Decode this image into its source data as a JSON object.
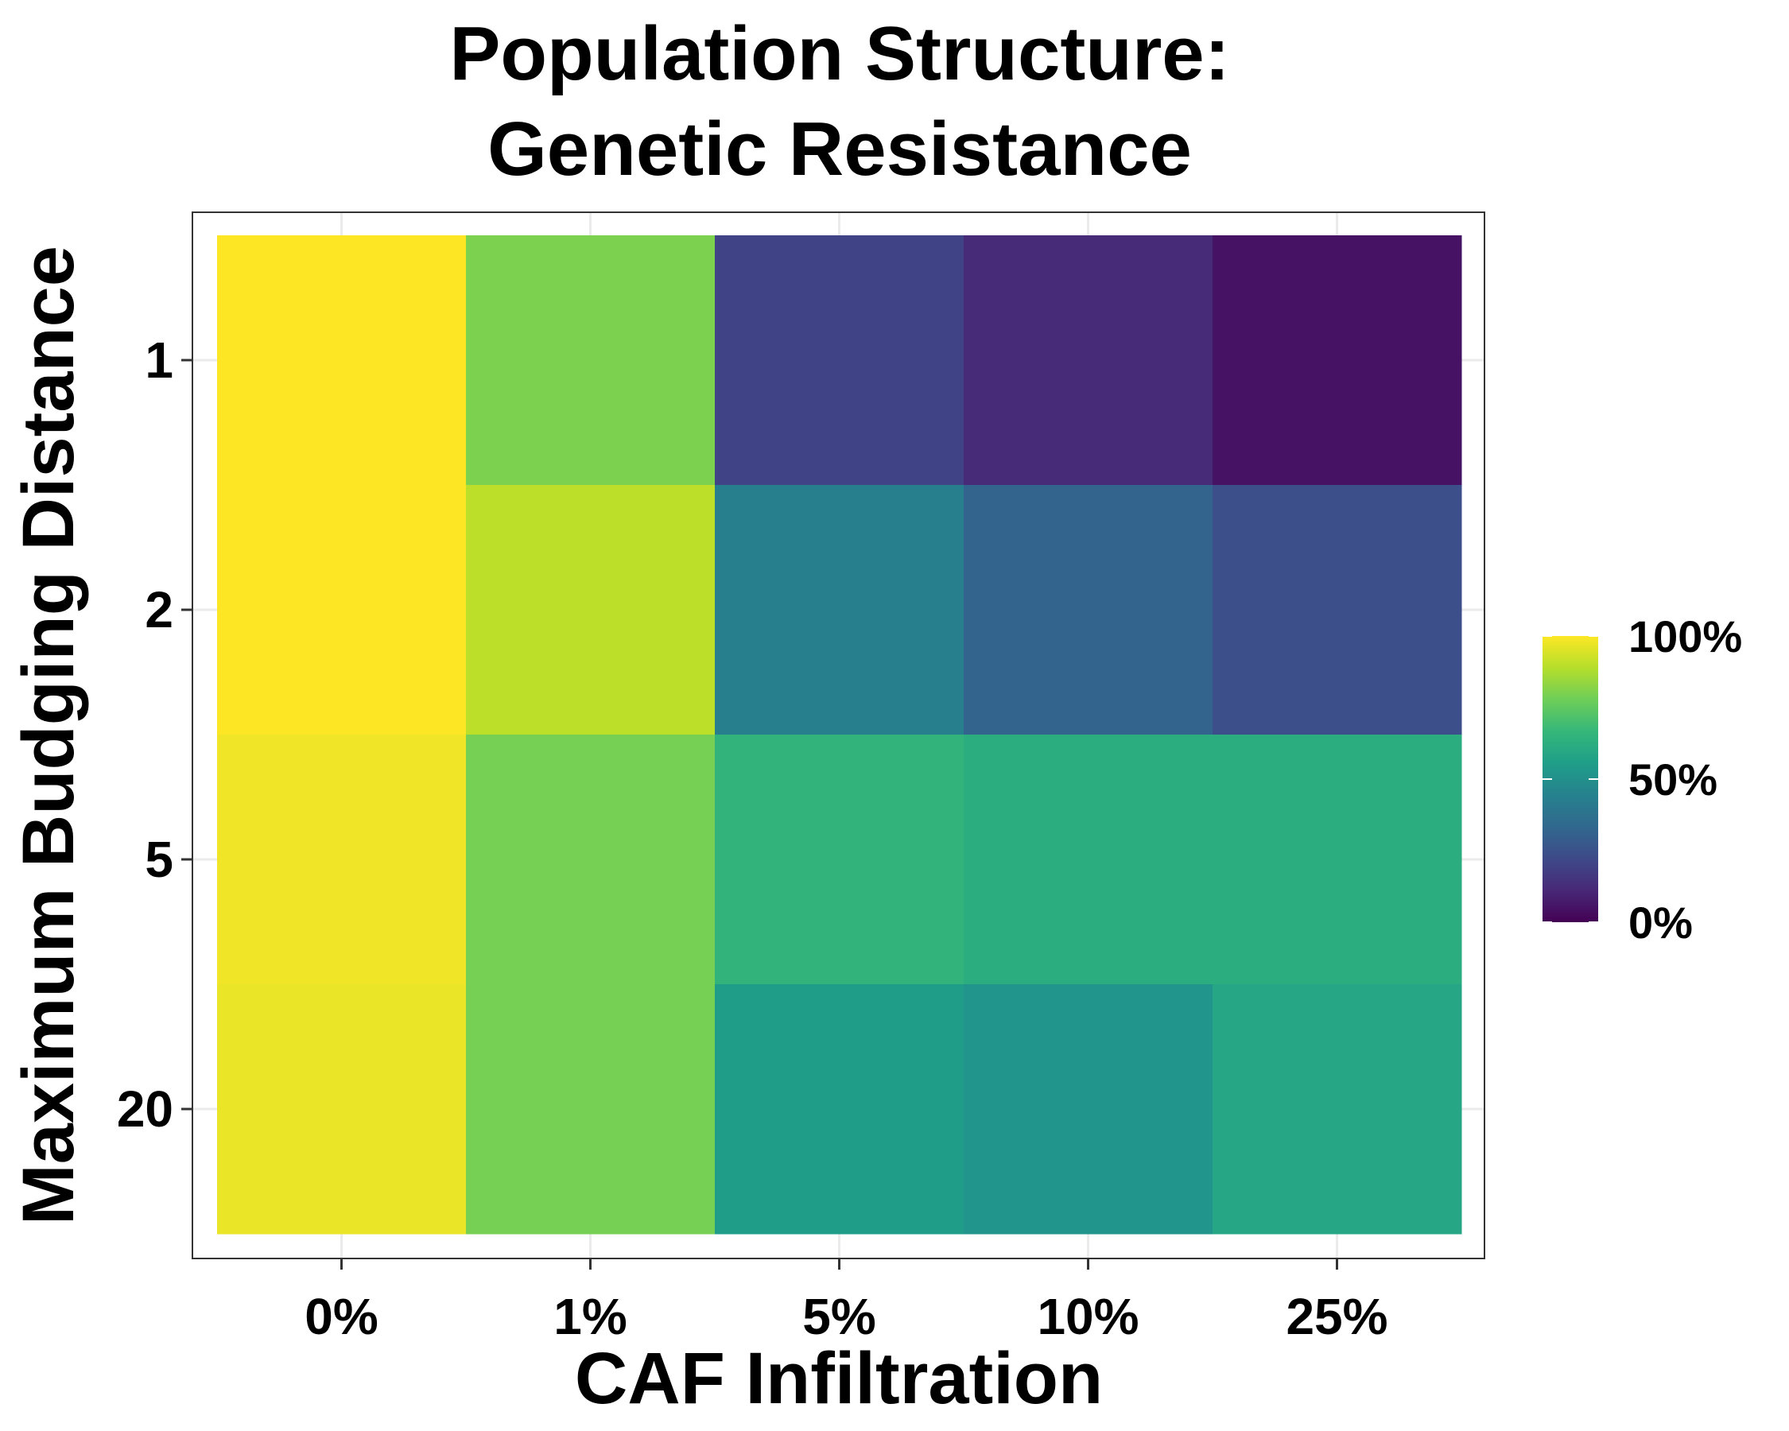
{
  "chart_data": {
    "type": "heatmap",
    "title": [
      "Population Structure:",
      "Genetic Resistance"
    ],
    "xlabel": "CAF Infiltration",
    "ylabel": "Maximum Budging Distance",
    "x_categories": [
      "0%",
      "1%",
      "5%",
      "10%",
      "25%"
    ],
    "y_categories": [
      "1",
      "2",
      "5",
      "20"
    ],
    "values": [
      [
        100,
        80,
        20,
        12,
        5
      ],
      [
        100,
        90,
        43,
        32,
        24
      ],
      [
        98,
        79,
        65,
        62,
        62
      ],
      [
        97,
        79,
        55,
        52,
        59
      ]
    ],
    "value_units": "%",
    "color_scale": {
      "name": "viridis",
      "min": 0,
      "max": 100,
      "stops": [
        "#440154",
        "#482878",
        "#3e4a89",
        "#31688e",
        "#26828e",
        "#1f9e89",
        "#35b779",
        "#6ece58",
        "#b5de2b",
        "#fde725"
      ]
    },
    "legend": {
      "placement": "right",
      "ticks": [
        "100%",
        "50%",
        "0%"
      ],
      "tick_values": [
        100,
        50,
        0
      ]
    },
    "grid": true
  }
}
